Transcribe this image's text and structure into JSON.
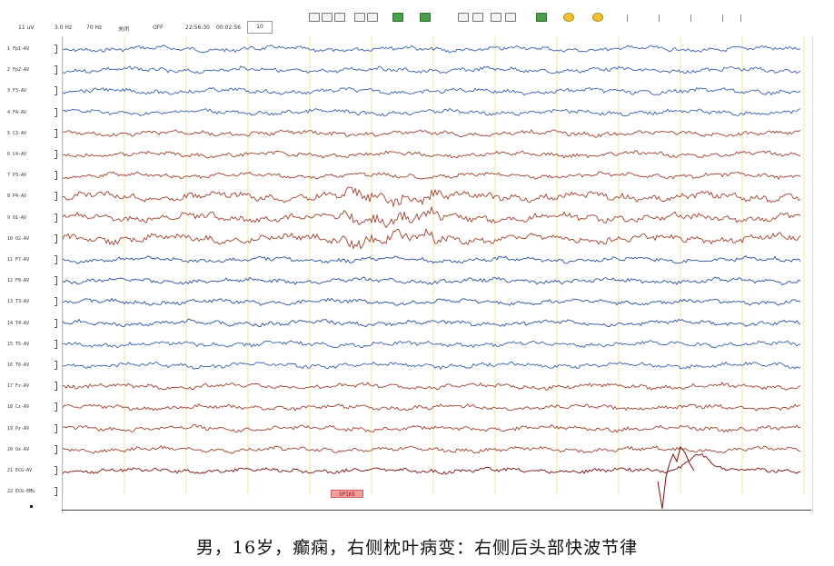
{
  "toolbar": {
    "field1": "11 uV",
    "field2": "3.0 Hz",
    "field3": "70 Hz",
    "field4": "关闭",
    "field5": "OFF",
    "time_start": "22:56:30",
    "time_elapsed": "00:02:56",
    "page_box": "10"
  },
  "channels": [
    {
      "label": "1 Fp1-AV",
      "color": "#3a5fb0"
    },
    {
      "label": "2 Fp2-AV",
      "color": "#3a5fb0"
    },
    {
      "label": "3 F3-AV",
      "color": "#3a5fb0"
    },
    {
      "label": "4 F4-AV",
      "color": "#3a5fb0"
    },
    {
      "label": "5 C3-AV",
      "color": "#a04030"
    },
    {
      "label": "6 C4-AV",
      "color": "#a04030"
    },
    {
      "label": "7 P3-AV",
      "color": "#a04030"
    },
    {
      "label": "8 P4-AV",
      "color": "#a04030"
    },
    {
      "label": "9 O1-AV",
      "color": "#a04030"
    },
    {
      "label": "10 O2-AV",
      "color": "#a04030"
    },
    {
      "label": "11 F7-AV",
      "color": "#2a4fa0"
    },
    {
      "label": "12 F8-AV",
      "color": "#2a4fa0"
    },
    {
      "label": "13 T3-AV",
      "color": "#2a4fa0"
    },
    {
      "label": "14 T4-AV",
      "color": "#2a4fa0"
    },
    {
      "label": "15 T5-AV",
      "color": "#3a5fb0"
    },
    {
      "label": "16 T6-AV",
      "color": "#3a5fb0"
    },
    {
      "label": "17 Fz-AV",
      "color": "#a04030"
    },
    {
      "label": "18 Cz-AV",
      "color": "#a04030"
    },
    {
      "label": "19 Pz-AV",
      "color": "#a04030"
    },
    {
      "label": "20 Oz-AV",
      "color": "#a04030"
    },
    {
      "label": "21 ECG-AV",
      "color": "#7a1010"
    },
    {
      "label": "22 ECG-EMG",
      "color": "#333333"
    }
  ],
  "event_marker": "SPIKE",
  "caption": "男，16岁，癫痫，右侧枕叶病变：右侧后头部快波节律",
  "colors": {
    "grid": "#f2e79a",
    "trace_blue": "#3a5fb0",
    "trace_red": "#a04030"
  }
}
